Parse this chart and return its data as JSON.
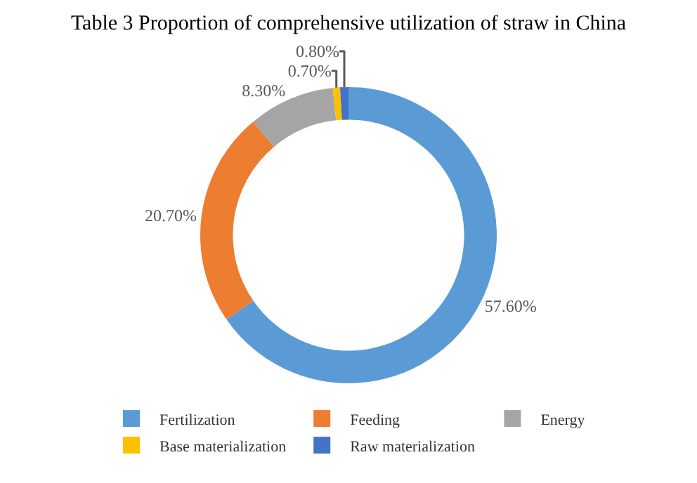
{
  "chart_data": {
    "type": "donut",
    "title": "Table 3 Proportion of comprehensive utilization of straw in China",
    "categories": [
      "Fertilization",
      "Feeding",
      "Energy",
      "Base materialization",
      "Raw materialization"
    ],
    "values": [
      57.6,
      20.7,
      8.3,
      0.7,
      0.8
    ],
    "value_labels": [
      "57.60%",
      "20.70%",
      "8.30%",
      "0.70%",
      "0.80%"
    ],
    "colors": [
      "#5b9bd5",
      "#ed7d31",
      "#a5a5a5",
      "#ffc000",
      "#4472c4"
    ],
    "legend": "bottom"
  }
}
